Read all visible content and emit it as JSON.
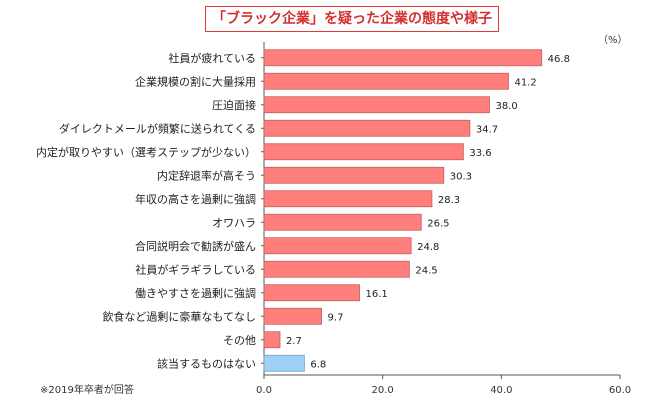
{
  "title": "「ブラック企業」を疑った企業の態度や様子",
  "unit": "（%）",
  "footnote": "※2019年卒者が回答",
  "colors": {
    "bar_main": "#ff7f7c",
    "bar_main_stroke": "#c85b59",
    "bar_last": "#9fd0f5",
    "bar_last_stroke": "#6a9fc9",
    "title": "#d32f2f"
  },
  "chart_data": {
    "type": "bar",
    "orientation": "horizontal",
    "title": "「ブラック企業」を疑った企業の態度や様子",
    "categories": [
      "社員が疲れている",
      "企業規模の割に大量採用",
      "圧迫面接",
      "ダイレクトメールが頻繁に送られてくる",
      "内定が取りやすい（選考ステップが少ない）",
      "内定辞退率が高そう",
      "年収の高さを過剰に強調",
      "オワハラ",
      "合同説明会で勧誘が盛ん",
      "社員がギラギラしている",
      "働きやすさを過剰に強調",
      "飲食など過剰に豪華なもてなし",
      "その他",
      "該当するものはない"
    ],
    "values": [
      46.8,
      41.2,
      38.0,
      34.7,
      33.6,
      30.3,
      28.3,
      26.5,
      24.8,
      24.5,
      16.1,
      9.7,
      2.7,
      6.8
    ],
    "value_labels": [
      "46.8",
      "41.2",
      "38.0",
      "34.7",
      "33.6",
      "30.3",
      "28.3",
      "26.5",
      "24.8",
      "24.5",
      "16.1",
      "9.7",
      "2.7",
      "6.8"
    ],
    "xlim": [
      0,
      60
    ],
    "xticks": [
      0,
      20,
      40,
      60
    ],
    "xtick_labels": [
      "0.0",
      "20.0",
      "40.0",
      "60.0"
    ],
    "grid": false,
    "legend": "none"
  }
}
